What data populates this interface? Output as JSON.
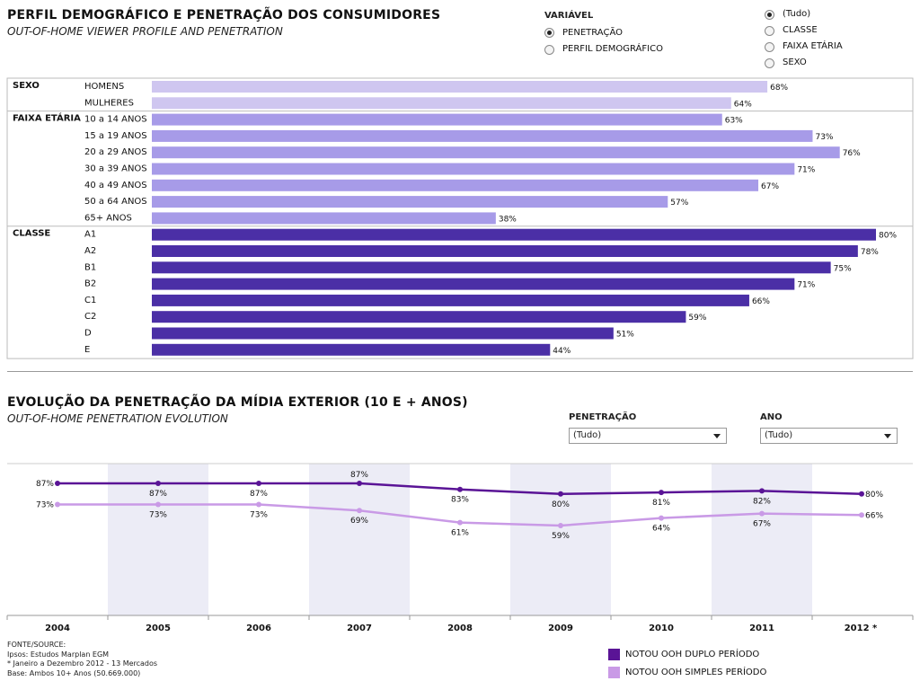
{
  "profile": {
    "title": "PERFIL DEMOGRÁFICO E PENETRAÇÃO DOS CONSUMIDORES",
    "subtitle": "OUT-OF-HOME VIEWER PROFILE AND PENETRATION"
  },
  "variavel": {
    "label": "VARIÁVEL",
    "options": [
      {
        "label": "PENETRAÇÃO",
        "selected": true
      },
      {
        "label": "PERFIL DEMOGRÁFICO",
        "selected": false
      }
    ]
  },
  "filter": {
    "options": [
      {
        "label": "(Tudo)",
        "selected": true
      },
      {
        "label": "CLASSE",
        "selected": false
      },
      {
        "label": "FAIXA ETÁRIA",
        "selected": false
      },
      {
        "label": "SEXO",
        "selected": false
      }
    ]
  },
  "evolution": {
    "title": "EVOLUÇÃO DA PENETRAÇÃO DA MÍDIA EXTERIOR (10 E + ANOS)",
    "subtitle": "OUT-OF-HOME PENETRATION EVOLUTION",
    "penetracao_label": "PENETRAÇÃO",
    "penetracao_value": "(Tudo)",
    "ano_label": "ANO",
    "ano_value": "(Tudo)"
  },
  "source": {
    "lines": [
      "FONTE/SOURCE:",
      "Ipsos: Estudos Marplan EGM",
      "* Janeiro a Dezembro 2012 - 13 Mercados",
      "Base: Ambos 10+ Anos (50.669.000)"
    ]
  },
  "colors": {
    "sexo": "#cfc6f0",
    "faixa": "#a79be8",
    "classe": "#4b2fa6",
    "duplo": "#5a1496",
    "simples": "#c99ae6"
  },
  "chart_data": [
    {
      "type": "bar",
      "orientation": "horizontal",
      "groups": [
        {
          "name": "SEXO",
          "categories": [
            "HOMENS",
            "MULHERES"
          ],
          "values": [
            68,
            64
          ]
        },
        {
          "name": "FAIXA ETÁRIA",
          "categories": [
            "10 a 14 ANOS",
            "15 a 19 ANOS",
            "20 a 29 ANOS",
            "30 a 39 ANOS",
            "40 a 49 ANOS",
            "50 a 64 ANOS",
            "65+ ANOS"
          ],
          "values": [
            63,
            73,
            76,
            71,
            67,
            57,
            38
          ]
        },
        {
          "name": "CLASSE",
          "categories": [
            "A1",
            "A2",
            "B1",
            "B2",
            "C1",
            "C2",
            "D",
            "E"
          ],
          "values": [
            80,
            78,
            75,
            71,
            66,
            59,
            51,
            44
          ]
        }
      ],
      "unit": "%",
      "xlim": [
        0,
        80
      ]
    },
    {
      "type": "line",
      "categories": [
        "2004",
        "2005",
        "2006",
        "2007",
        "2008",
        "2009",
        "2010",
        "2011",
        "2012 *"
      ],
      "series": [
        {
          "name": "NOTOU OOH DUPLO PERÍODO",
          "values": [
            87,
            87,
            87,
            87,
            83,
            80,
            81,
            82,
            80
          ]
        },
        {
          "name": "NOTOU OOH SIMPLES PERÍODO",
          "values": [
            73,
            73,
            73,
            69,
            61,
            59,
            64,
            67,
            66
          ]
        }
      ],
      "unit": "%",
      "legend": "bottom-right"
    }
  ]
}
